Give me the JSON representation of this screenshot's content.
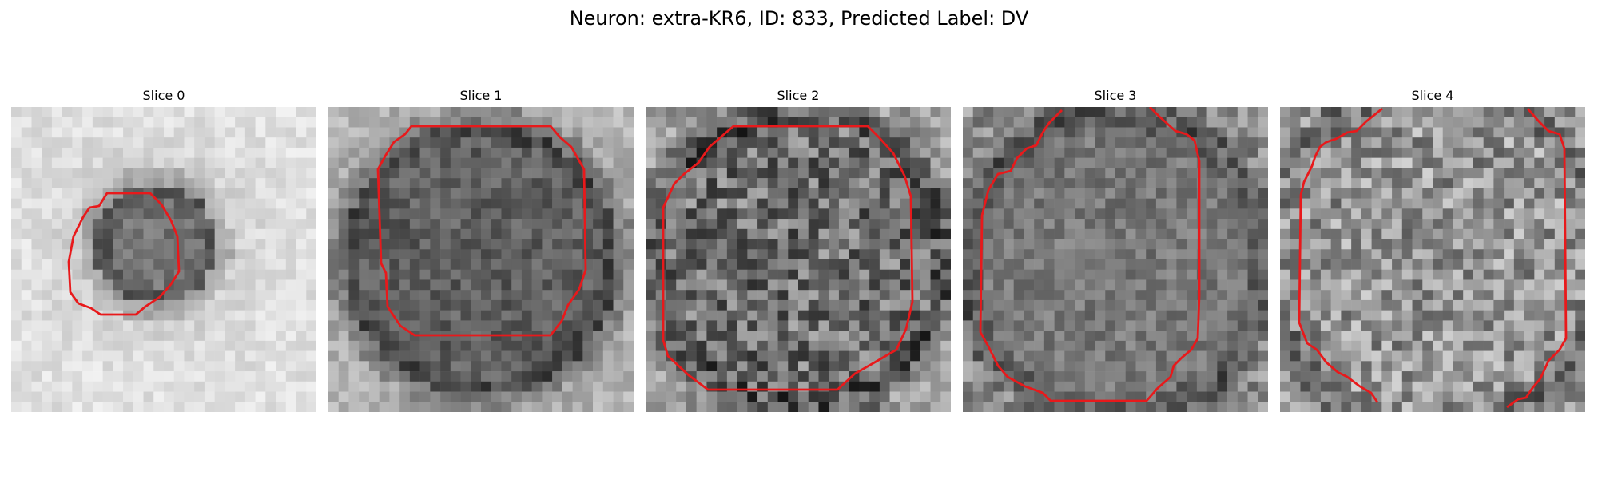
{
  "figure": {
    "title": "Neuron: extra-KR6, ID: 833, Predicted Label: DV"
  },
  "colors": {
    "contour": "#e8191b",
    "background": "#ffffff"
  },
  "panels": [
    {
      "title": "Slice 0"
    },
    {
      "title": "Slice 1"
    },
    {
      "title": "Slice 2"
    },
    {
      "title": "Slice 3"
    },
    {
      "title": "Slice 4"
    }
  ]
}
